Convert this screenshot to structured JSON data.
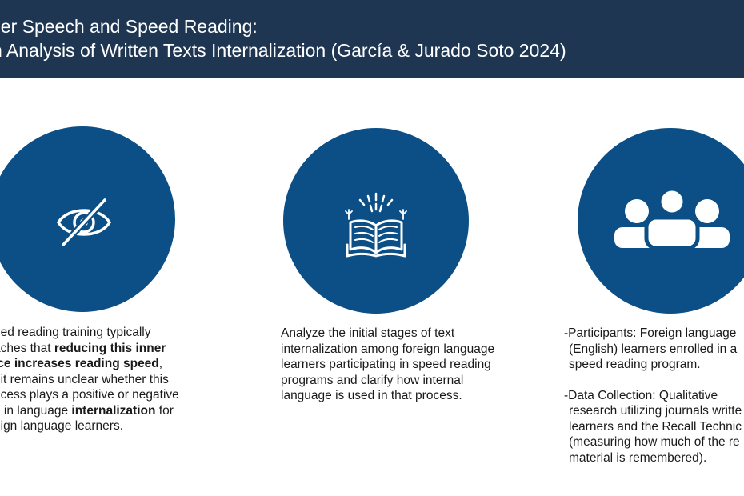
{
  "slide": {
    "title_line1": "ner Speech and Speed Reading:",
    "title_line2": "n Analysis of Written Texts Internalization (García & Jurado Soto 2024)"
  },
  "col1": {
    "l1": "eed reading training typically",
    "l2a": "aches that ",
    "l2b": "reducing this inner",
    "l3a": "ice increases reading speed",
    "l3b": ",",
    "l4": "t it remains unclear whether this",
    "l5": "ocess plays a positive or negative",
    "l6a": "e in language ",
    "l6b": "internalization",
    "l6c": " for",
    "l7": "eign language learners."
  },
  "col2": {
    "l1": "Analyze the initial stages of text",
    "l2": "internalization among foreign language",
    "l3": "learners participating in speed reading",
    "l4": "programs and clarify how internal",
    "l5": "language is used in that process."
  },
  "col3": {
    "p1_l1": "-Participants: Foreign language",
    "p1_l2": "(English) learners enrolled in a",
    "p1_l3": "speed reading program.",
    "p2_l1": "-Data Collection: Qualitative",
    "p2_l2": "research utilizing journals writte",
    "p2_l3": "learners and the Recall Technic",
    "p2_l4": "(measuring how much of the re",
    "p2_l5": " material is remembered)."
  },
  "colors": {
    "header": "#1e3652",
    "circle": "#0b4f86",
    "icon": "#ffffff"
  },
  "icons": [
    "eye-slash-icon",
    "open-book-icon",
    "group-icon"
  ]
}
